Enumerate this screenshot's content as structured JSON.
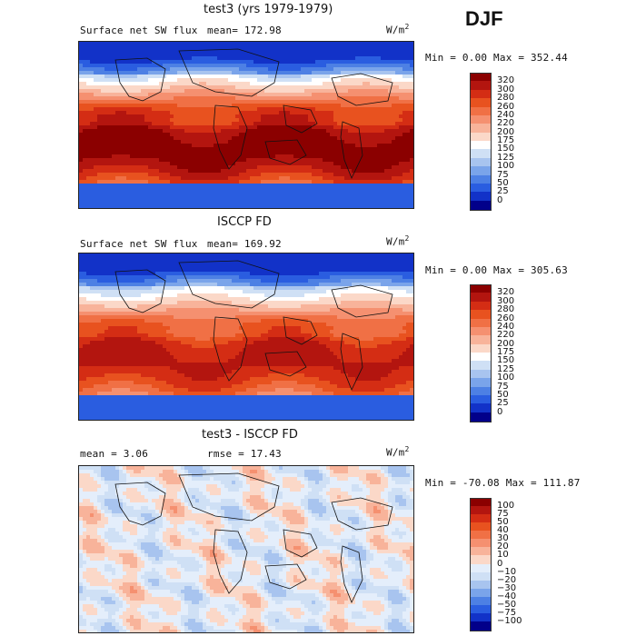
{
  "season": "DJF",
  "panels": [
    {
      "title": "test3 (yrs 1979-1979)",
      "variable": "Surface net SW flux",
      "stat_text": "mean= 172.98",
      "units": "W/m",
      "units_sup": "2",
      "minmax": "Min =    0.00 Max = 352.44",
      "colorbar": {
        "labels": [
          "320",
          "300",
          "280",
          "260",
          "240",
          "220",
          "200",
          "175",
          "150",
          "125",
          "100",
          "75",
          "50",
          "25",
          "0"
        ],
        "colors": [
          "#8b0000",
          "#b3150f",
          "#d42d14",
          "#e8521f",
          "#f07045",
          "#f59070",
          "#f8b39a",
          "#fbd8c8",
          "#ffffff",
          "#cfe0f5",
          "#a8c4ef",
          "#7aa4ea",
          "#4d80e4",
          "#2a5de0",
          "#1232c8",
          "#02008a"
        ]
      },
      "palette": "flux"
    },
    {
      "title": "ISCCP FD",
      "variable": "Surface net SW flux",
      "stat_text": "mean= 169.92",
      "units": "W/m",
      "units_sup": "2",
      "minmax": "Min =    0.00 Max = 305.63",
      "colorbar": {
        "labels": [
          "320",
          "300",
          "280",
          "260",
          "240",
          "220",
          "200",
          "175",
          "150",
          "125",
          "100",
          "75",
          "50",
          "25",
          "0"
        ],
        "colors": [
          "#8b0000",
          "#b3150f",
          "#d42d14",
          "#e8521f",
          "#f07045",
          "#f59070",
          "#f8b39a",
          "#fbd8c8",
          "#ffffff",
          "#cfe0f5",
          "#a8c4ef",
          "#7aa4ea",
          "#4d80e4",
          "#2a5de0",
          "#1232c8",
          "#02008a"
        ]
      },
      "palette": "flux"
    },
    {
      "title": "test3 - ISCCP FD",
      "variable": "mean =    3.06",
      "stat_text": "rmse =   17.43",
      "units": "W/m",
      "units_sup": "2",
      "minmax": "Min = -70.08 Max = 111.87",
      "colorbar": {
        "labels": [
          "100",
          "75",
          "50",
          "40",
          "30",
          "20",
          "10",
          "0",
          "−10",
          "−20",
          "−30",
          "−40",
          "−50",
          "−75",
          "−100"
        ],
        "colors": [
          "#8b0000",
          "#b3150f",
          "#d42d14",
          "#e8521f",
          "#f07045",
          "#f59070",
          "#f8b39a",
          "#fbd8c8",
          "#e4eefb",
          "#cfe0f5",
          "#a8c4ef",
          "#7aa4ea",
          "#4d80e4",
          "#2a5de0",
          "#1232c8",
          "#02008a"
        ]
      },
      "palette": "diff"
    }
  ]
}
